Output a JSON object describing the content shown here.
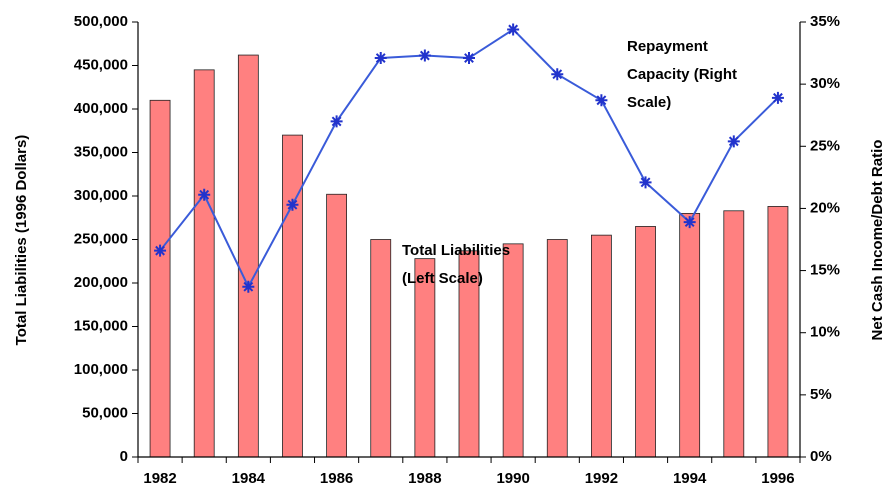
{
  "chart_data": {
    "type": "bar-line",
    "categories": [
      "1982",
      null,
      "1984",
      null,
      "1986",
      null,
      "1988",
      null,
      "1990",
      null,
      "1992",
      null,
      "1994",
      null,
      "1996"
    ],
    "y_label": "Total Liabilities (1996 Dollars)",
    "y2_label": "Net Cash Income/Debt Ratio",
    "series": [
      {
        "name": "Total Liabilities",
        "type": "bar",
        "color": "#ff8080",
        "values": [
          410000,
          445000,
          462000,
          370000,
          302000,
          250000,
          228000,
          237000,
          245000,
          250000,
          255000,
          265000,
          280000,
          283000,
          288000
        ]
      },
      {
        "name": "Repayment Capacity",
        "type": "line",
        "axis": "y2",
        "color": "#3a5bd9",
        "values": [
          16.6,
          21.1,
          13.7,
          20.3,
          27.0,
          32.1,
          32.3,
          32.1,
          34.4,
          30.8,
          28.7,
          22.1,
          18.9,
          25.4,
          28.9
        ]
      }
    ],
    "annotations": [
      {
        "lines": [
          "Total Liabilities",
          "(Left Scale)"
        ]
      },
      {
        "lines": [
          "Repayment",
          "Capacity (Right",
          "Scale)"
        ]
      }
    ],
    "ylim": [
      0,
      500000
    ],
    "yticks": [
      0,
      {
        "value": 50000,
        "label": "50,000"
      },
      {
        "value": 100000,
        "label": "100,000"
      },
      {
        "value": 150000,
        "label": "150,000"
      },
      {
        "value": 200000,
        "label": "200,000"
      },
      {
        "value": 250000,
        "label": "250,000"
      },
      {
        "value": 300000,
        "label": "300,000"
      },
      {
        "value": 350000,
        "label": "350,000"
      },
      {
        "value": 400000,
        "label": "400,000"
      },
      {
        "value": 450000,
        "label": "450,000"
      },
      {
        "value": 500000,
        "label": "500,000"
      }
    ],
    "y2lim": [
      0,
      35
    ],
    "y2ticks": [
      {
        "value": 0,
        "label": "0%"
      },
      {
        "value": 5,
        "label": "5%"
      },
      {
        "value": 10,
        "label": "10%"
      },
      {
        "value": 15,
        "label": "15%"
      },
      {
        "value": 20,
        "label": "20%"
      },
      {
        "value": 25,
        "label": "25%"
      },
      {
        "value": 30,
        "label": "30%"
      },
      {
        "value": 35,
        "label": "35%"
      }
    ]
  }
}
